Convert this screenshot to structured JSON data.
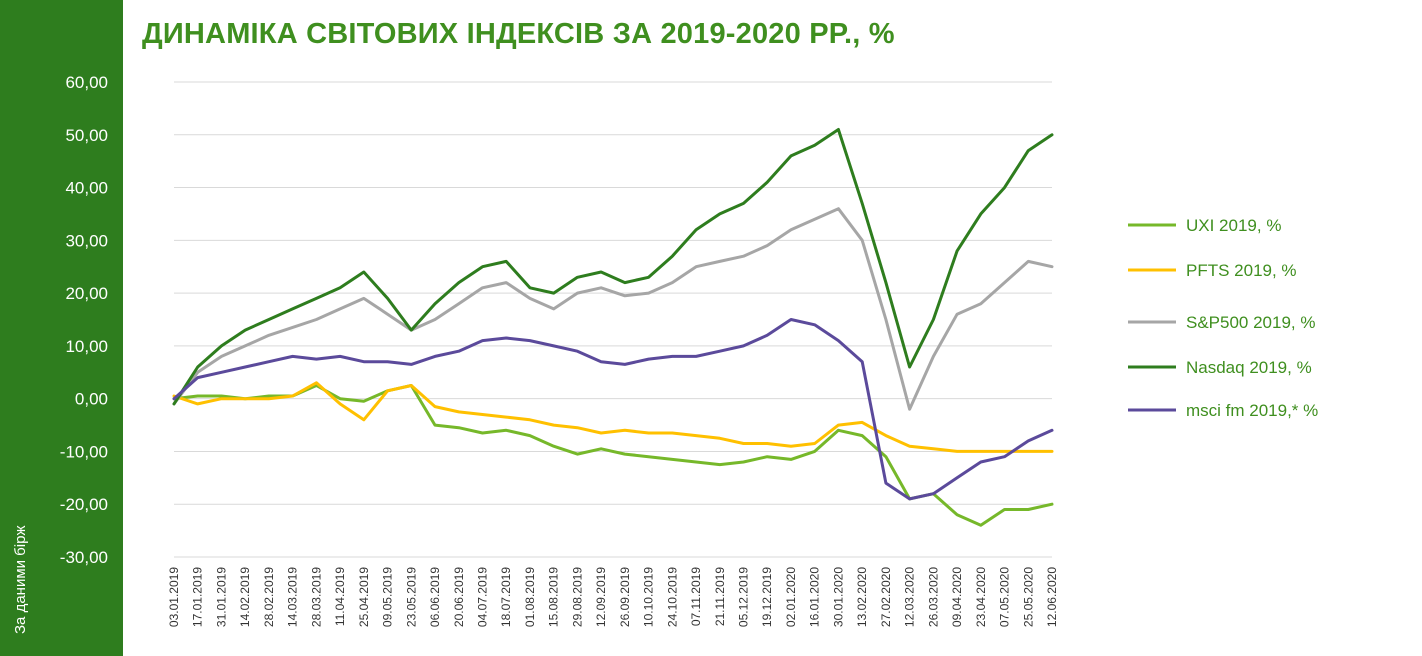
{
  "title": "ДИНАМІКА СВІТОВИХ ІНДЕКСІВ ЗА 2019-2020 РР., %",
  "side_note": "За даними бірж",
  "colors": {
    "sidebar": "#2e7d1e",
    "title": "#3f8f1f",
    "UXI": "#76b82a",
    "PFTS": "#ffc000",
    "SP500": "#a6a6a6",
    "Nasdaq": "#2e7d1e",
    "msci": "#5b4a9b"
  },
  "chart_data": {
    "type": "line",
    "title": "ДИНАМІКА СВІТОВИХ ІНДЕКСІВ ЗА 2019-2020 РР., %",
    "xlabel": "",
    "ylabel": "",
    "ylim": [
      -30,
      60
    ],
    "y_ticks": [
      "60,00",
      "50,00",
      "40,00",
      "30,00",
      "20,00",
      "10,00",
      "0,00",
      "-10,00",
      "-20,00",
      "-30,00"
    ],
    "y_tick_values": [
      60,
      50,
      40,
      30,
      20,
      10,
      0,
      -10,
      -20,
      -30
    ],
    "x_tick_labels": [
      "03.01.2019",
      "17.01.2019",
      "31.01.2019",
      "14.02.2019",
      "28.02.2019",
      "14.03.2019",
      "28.03.2019",
      "11.04.2019",
      "25.04.2019",
      "09.05.2019",
      "23.05.2019",
      "06.06.2019",
      "20.06.2019",
      "04.07.2019",
      "18.07.2019",
      "01.08.2019",
      "15.08.2019",
      "29.08.2019",
      "12.09.2019",
      "26.09.2019",
      "10.10.2019",
      "24.10.2019",
      "07.11.2019",
      "21.11.2019",
      "05.12.2019",
      "19.12.2019",
      "02.01.2020",
      "16.01.2020",
      "30.01.2020",
      "13.02.2020",
      "27.02.2020",
      "12.03.2020",
      "26.03.2020",
      "09.04.2020",
      "23.04.2020",
      "07.05.2020",
      "25.05.2020",
      "12.06.2020"
    ],
    "grid": true,
    "legend_position": "right",
    "series": [
      {
        "name": "UXI 2019, %",
        "key": "UXI",
        "x": [
          "03.01.2019",
          "17.01.2019",
          "31.01.2019",
          "14.02.2019",
          "28.02.2019",
          "14.03.2019",
          "28.03.2019",
          "11.04.2019",
          "25.04.2019",
          "09.05.2019",
          "23.05.2019",
          "06.06.2019",
          "20.06.2019",
          "04.07.2019",
          "18.07.2019",
          "01.08.2019",
          "15.08.2019",
          "29.08.2019",
          "12.09.2019",
          "26.09.2019",
          "10.10.2019",
          "24.10.2019",
          "07.11.2019",
          "21.11.2019",
          "05.12.2019",
          "19.12.2019",
          "02.01.2020",
          "16.01.2020",
          "30.01.2020",
          "13.02.2020",
          "27.02.2020",
          "12.03.2020",
          "26.03.2020",
          "09.04.2020",
          "23.04.2020",
          "07.05.2020",
          "25.05.2020",
          "12.06.2020"
        ],
        "values": [
          0,
          0.5,
          0.5,
          0,
          0.5,
          0.5,
          2.5,
          0,
          -0.5,
          1.5,
          2.5,
          -5,
          -5.5,
          -6.5,
          -6,
          -7,
          -9,
          -10.5,
          -9.5,
          -10.5,
          -11,
          -11.5,
          -12,
          -12.5,
          -12,
          -11,
          -11.5,
          -10,
          -6,
          -7,
          -11,
          -19,
          -18,
          -22,
          -24,
          -21,
          -21,
          -20
        ]
      },
      {
        "name": "PFTS 2019, %",
        "key": "PFTS",
        "x": [
          "03.01.2019",
          "17.01.2019",
          "31.01.2019",
          "14.02.2019",
          "28.02.2019",
          "14.03.2019",
          "28.03.2019",
          "11.04.2019",
          "25.04.2019",
          "09.05.2019",
          "23.05.2019",
          "06.06.2019",
          "20.06.2019",
          "04.07.2019",
          "18.07.2019",
          "01.08.2019",
          "15.08.2019",
          "29.08.2019",
          "12.09.2019",
          "26.09.2019",
          "10.10.2019",
          "24.10.2019",
          "07.11.2019",
          "21.11.2019",
          "05.12.2019",
          "19.12.2019",
          "02.01.2020",
          "16.01.2020",
          "30.01.2020",
          "13.02.2020",
          "27.02.2020",
          "12.03.2020",
          "26.03.2020",
          "09.04.2020",
          "23.04.2020",
          "07.05.2020",
          "25.05.2020",
          "12.06.2020"
        ],
        "values": [
          0.5,
          -1,
          0,
          0,
          0,
          0.5,
          3,
          -1,
          -4,
          1.5,
          2.5,
          -1.5,
          -2.5,
          -3,
          -3.5,
          -4,
          -5,
          -5.5,
          -6.5,
          -6,
          -6.5,
          -6.5,
          -7,
          -7.5,
          -8.5,
          -8.5,
          -9,
          -8.5,
          -5,
          -4.5,
          -7,
          -9,
          -9.5,
          -10,
          -10,
          -10,
          -10,
          -10
        ]
      },
      {
        "name": "S&P500 2019, %",
        "key": "SP500",
        "x": [
          "03.01.2019",
          "17.01.2019",
          "31.01.2019",
          "14.02.2019",
          "28.02.2019",
          "14.03.2019",
          "28.03.2019",
          "11.04.2019",
          "25.04.2019",
          "09.05.2019",
          "23.05.2019",
          "06.06.2019",
          "20.06.2019",
          "04.07.2019",
          "18.07.2019",
          "01.08.2019",
          "15.08.2019",
          "29.08.2019",
          "12.09.2019",
          "26.09.2019",
          "10.10.2019",
          "24.10.2019",
          "07.11.2019",
          "21.11.2019",
          "05.12.2019",
          "19.12.2019",
          "02.01.2020",
          "16.01.2020",
          "30.01.2020",
          "13.02.2020",
          "27.02.2020",
          "12.03.2020",
          "26.03.2020",
          "09.04.2020",
          "23.04.2020",
          "07.05.2020",
          "25.05.2020",
          "12.06.2020"
        ],
        "values": [
          -1,
          5,
          8,
          10,
          12,
          13.5,
          15,
          17,
          19,
          16,
          13,
          15,
          18,
          21,
          22,
          19,
          17,
          20,
          21,
          19.5,
          20,
          22,
          25,
          26,
          27,
          29,
          32,
          34,
          36,
          30,
          15,
          -2,
          8,
          16,
          18,
          22,
          26,
          25
        ]
      },
      {
        "name": "Nasdaq 2019, %",
        "key": "Nasdaq",
        "x": [
          "03.01.2019",
          "17.01.2019",
          "31.01.2019",
          "14.02.2019",
          "28.02.2019",
          "14.03.2019",
          "28.03.2019",
          "11.04.2019",
          "25.04.2019",
          "09.05.2019",
          "23.05.2019",
          "06.06.2019",
          "20.06.2019",
          "04.07.2019",
          "18.07.2019",
          "01.08.2019",
          "15.08.2019",
          "29.08.2019",
          "12.09.2019",
          "26.09.2019",
          "10.10.2019",
          "24.10.2019",
          "07.11.2019",
          "21.11.2019",
          "05.12.2019",
          "19.12.2019",
          "02.01.2020",
          "16.01.2020",
          "30.01.2020",
          "13.02.2020",
          "27.02.2020",
          "12.03.2020",
          "26.03.2020",
          "09.04.2020",
          "23.04.2020",
          "07.05.2020",
          "25.05.2020",
          "12.06.2020"
        ],
        "values": [
          -1,
          6,
          10,
          13,
          15,
          17,
          19,
          21,
          24,
          19,
          13,
          18,
          22,
          25,
          26,
          21,
          20,
          23,
          24,
          22,
          23,
          27,
          32,
          35,
          37,
          41,
          46,
          48,
          51,
          37,
          22,
          6,
          15,
          28,
          35,
          40,
          47,
          50
        ]
      },
      {
        "name": "msci fm 2019,* %",
        "key": "msci",
        "x": [
          "03.01.2019",
          "17.01.2019",
          "31.01.2019",
          "14.02.2019",
          "28.02.2019",
          "14.03.2019",
          "28.03.2019",
          "11.04.2019",
          "25.04.2019",
          "09.05.2019",
          "23.05.2019",
          "06.06.2019",
          "20.06.2019",
          "04.07.2019",
          "18.07.2019",
          "01.08.2019",
          "15.08.2019",
          "29.08.2019",
          "12.09.2019",
          "26.09.2019",
          "10.10.2019",
          "24.10.2019",
          "07.11.2019",
          "21.11.2019",
          "05.12.2019",
          "19.12.2019",
          "02.01.2020",
          "16.01.2020",
          "30.01.2020",
          "13.02.2020",
          "27.02.2020",
          "12.03.2020",
          "26.03.2020",
          "09.04.2020",
          "23.04.2020",
          "07.05.2020",
          "25.05.2020",
          "12.06.2020"
        ],
        "values": [
          0,
          4,
          5,
          6,
          7,
          8,
          7.5,
          8,
          7,
          7,
          6.5,
          8,
          9,
          11,
          11.5,
          11,
          10,
          9,
          7,
          6.5,
          7.5,
          8,
          8,
          9,
          10,
          12,
          15,
          14,
          11,
          7,
          -16,
          -19,
          -18,
          -15,
          -12,
          -11,
          -8,
          -6
        ]
      }
    ]
  }
}
